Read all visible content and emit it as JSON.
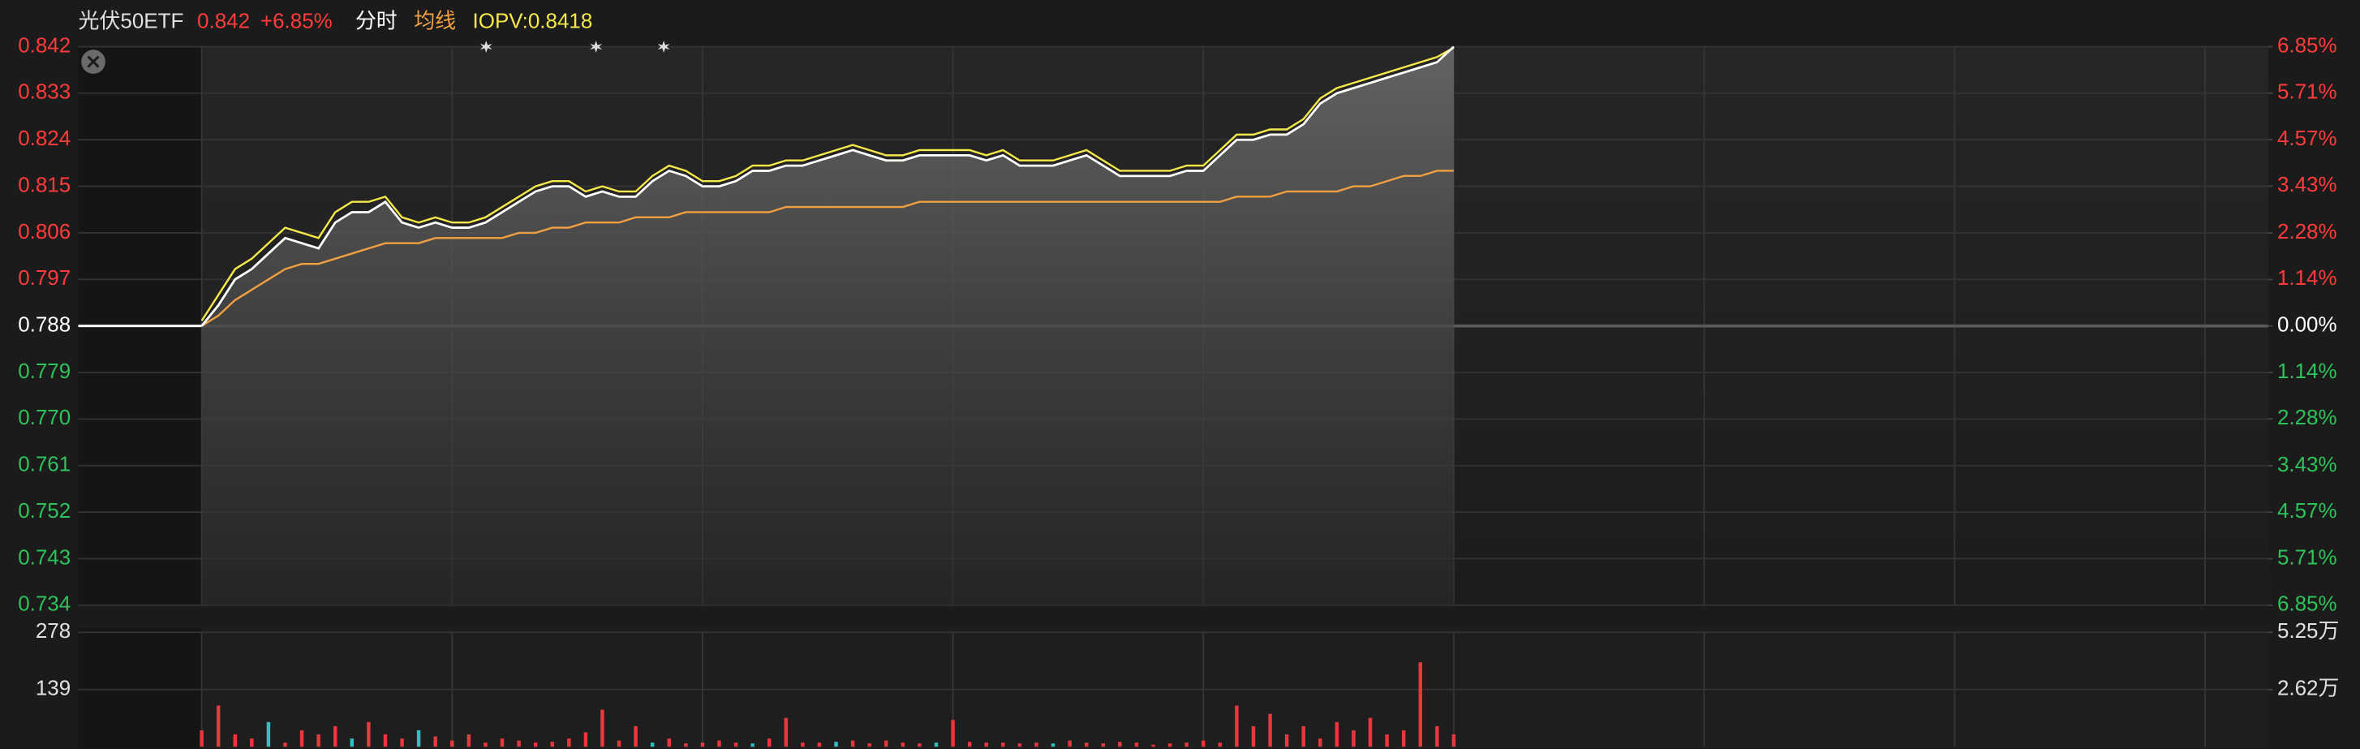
{
  "chart_data": [
    {
      "type": "line",
      "title": "光伏50ETF",
      "last_price": 0.842,
      "last_change": "+6.85%",
      "ylim": [
        0.734,
        0.842
      ],
      "yticks": [
        0.842,
        0.833,
        0.824,
        0.815,
        0.806,
        0.797,
        0.788,
        0.779,
        {
          "value": 0.77,
          "label": "0.770"
        },
        0.761,
        0.752,
        0.743,
        0.734
      ],
      "y2lim": [
        -6.85,
        6.85
      ],
      "y2ticks": [
        {
          "value": 6.85,
          "label": "6.85%"
        },
        {
          "value": 5.71,
          "label": "5.71%"
        },
        {
          "value": 4.57,
          "label": "4.57%"
        },
        {
          "value": 3.43,
          "label": "3.43%"
        },
        {
          "value": 2.28,
          "label": "2.28%"
        },
        {
          "value": 1.14,
          "label": "1.14%"
        },
        {
          "value": 0,
          "label": "0.00%"
        },
        {
          "value": -1.14,
          "label": "1.14%"
        },
        {
          "value": -2.28,
          "label": "2.28%"
        },
        {
          "value": -3.43,
          "label": "3.43%"
        },
        {
          "value": -4.57,
          "label": "4.57%"
        },
        {
          "value": -5.71,
          "label": "5.71%"
        },
        {
          "value": -6.85,
          "label": "6.85%"
        }
      ],
      "grid": true,
      "series": [
        {
          "name": "分时",
          "color": "#ffffff",
          "values": [
            0.788,
            0.792,
            0.797,
            0.799,
            0.802,
            0.805,
            0.804,
            0.803,
            0.808,
            0.81,
            0.81,
            0.812,
            0.808,
            0.807,
            0.808,
            0.807,
            0.807,
            0.808,
            0.81,
            0.812,
            0.814,
            0.815,
            0.815,
            0.813,
            0.814,
            0.813,
            0.813,
            0.816,
            0.818,
            0.817,
            0.815,
            0.815,
            0.816,
            0.818,
            0.818,
            0.819,
            0.819,
            0.82,
            0.821,
            0.822,
            0.821,
            0.82,
            0.82,
            0.821,
            0.821,
            0.821,
            0.821,
            0.82,
            0.821,
            0.819,
            0.819,
            0.819,
            0.82,
            0.821,
            0.819,
            0.817,
            0.817,
            0.817,
            0.817,
            0.818,
            0.818,
            0.821,
            0.824,
            0.824,
            0.825,
            0.825,
            0.827,
            0.831,
            0.833,
            0.834,
            0.835,
            0.836,
            0.837,
            0.838,
            0.839,
            0.842
          ]
        },
        {
          "name": "均线",
          "color": "#f0a040",
          "values": [
            0.788,
            0.79,
            0.793,
            0.795,
            0.797,
            0.799,
            0.8,
            0.8,
            0.801,
            0.802,
            0.803,
            0.804,
            0.804,
            0.804,
            0.805,
            0.805,
            0.805,
            0.805,
            0.805,
            0.806,
            0.806,
            0.807,
            0.807,
            0.808,
            0.808,
            0.808,
            0.809,
            0.809,
            0.809,
            0.81,
            0.81,
            0.81,
            0.81,
            0.81,
            0.81,
            0.811,
            0.811,
            0.811,
            0.811,
            0.811,
            0.811,
            0.811,
            0.811,
            0.812,
            0.812,
            0.812,
            0.812,
            0.812,
            0.812,
            0.812,
            0.812,
            0.812,
            0.812,
            0.812,
            0.812,
            0.812,
            0.812,
            0.812,
            0.812,
            0.812,
            0.812,
            0.812,
            0.813,
            0.813,
            0.813,
            0.814,
            0.814,
            0.814,
            0.814,
            0.815,
            0.815,
            0.816,
            0.817,
            0.817,
            0.818,
            0.818
          ]
        },
        {
          "name": "IOPV:0.8418",
          "color": "#f5e94a",
          "values": [
            0.789,
            0.794,
            0.799,
            0.801,
            0.804,
            0.807,
            0.806,
            0.805,
            0.81,
            0.812,
            0.812,
            0.813,
            0.809,
            0.808,
            0.809,
            0.808,
            0.808,
            0.809,
            0.811,
            0.813,
            0.815,
            0.816,
            0.816,
            0.814,
            0.815,
            0.814,
            0.814,
            0.817,
            0.819,
            0.818,
            0.816,
            0.816,
            0.817,
            0.819,
            0.819,
            0.82,
            0.82,
            0.821,
            0.822,
            0.823,
            0.822,
            0.821,
            0.821,
            0.822,
            0.822,
            0.822,
            0.822,
            0.821,
            0.822,
            0.82,
            0.82,
            0.82,
            0.821,
            0.822,
            0.82,
            0.818,
            0.818,
            0.818,
            0.818,
            0.819,
            0.819,
            0.822,
            0.825,
            0.825,
            0.826,
            0.826,
            0.828,
            0.832,
            0.834,
            0.835,
            0.836,
            0.837,
            0.838,
            0.839,
            0.84,
            0.8418
          ]
        }
      ]
    },
    {
      "type": "bar",
      "ylim": [
        0,
        278
      ],
      "yticks": [
        278,
        139
      ],
      "y2lim": [
        0,
        52500
      ],
      "y2ticks": [
        {
          "value": 52500,
          "label": "5.25万"
        },
        {
          "value": 26200,
          "label": "2.62万"
        }
      ],
      "values": [
        40,
        100,
        30,
        20,
        60,
        10,
        40,
        30,
        50,
        20,
        60,
        30,
        20,
        40,
        25,
        15,
        30,
        10,
        20,
        15,
        10,
        12,
        20,
        35,
        90,
        15,
        50,
        10,
        20,
        8,
        10,
        15,
        10,
        8,
        20,
        70,
        10,
        10,
        12,
        15,
        8,
        15,
        10,
        8,
        10,
        65,
        12,
        10,
        10,
        8,
        10,
        8,
        15,
        10,
        8,
        12,
        10,
        5,
        8,
        10,
        15,
        10,
        100,
        50,
        80,
        30,
        50,
        20,
        60,
        40,
        70,
        30,
        40,
        205,
        50,
        30
      ],
      "colors": [
        "#e8383d",
        "#e8383d",
        "#e8383d",
        "#e8383d",
        "#2fbfbf",
        "#e8383d",
        "#e8383d",
        "#e8383d",
        "#e8383d",
        "#2fbfbf",
        "#e8383d",
        "#e8383d",
        "#e8383d",
        "#2fbfbf",
        "#e8383d",
        "#e8383d",
        "#e8383d",
        "#e8383d",
        "#e8383d",
        "#e8383d",
        "#e8383d",
        "#e8383d",
        "#e8383d",
        "#e8383d",
        "#e8383d",
        "#e8383d",
        "#e8383d",
        "#2fbfbf",
        "#e8383d",
        "#e8383d",
        "#e8383d",
        "#e8383d",
        "#e8383d",
        "#2fbfbf",
        "#e8383d",
        "#e8383d",
        "#e8383d",
        "#e8383d",
        "#2fbfbf",
        "#e8383d",
        "#e8383d",
        "#e8383d",
        "#e8383d",
        "#e8383d",
        "#2fbfbf",
        "#e8383d",
        "#e8383d",
        "#e8383d",
        "#e8383d",
        "#e8383d",
        "#e8383d",
        "#2fbfbf",
        "#e8383d",
        "#e8383d",
        "#e8383d",
        "#e8383d",
        "#e8383d",
        "#e8383d",
        "#e8383d",
        "#e8383d",
        "#e8383d",
        "#e8383d",
        "#e8383d",
        "#e8383d",
        "#e8383d",
        "#e8383d",
        "#e8383d",
        "#e8383d",
        "#e8383d",
        "#e8383d",
        "#e8383d",
        "#e8383d",
        "#e8383d",
        "#e8383d",
        "#e8383d",
        "#e8383d"
      ]
    }
  ]
}
